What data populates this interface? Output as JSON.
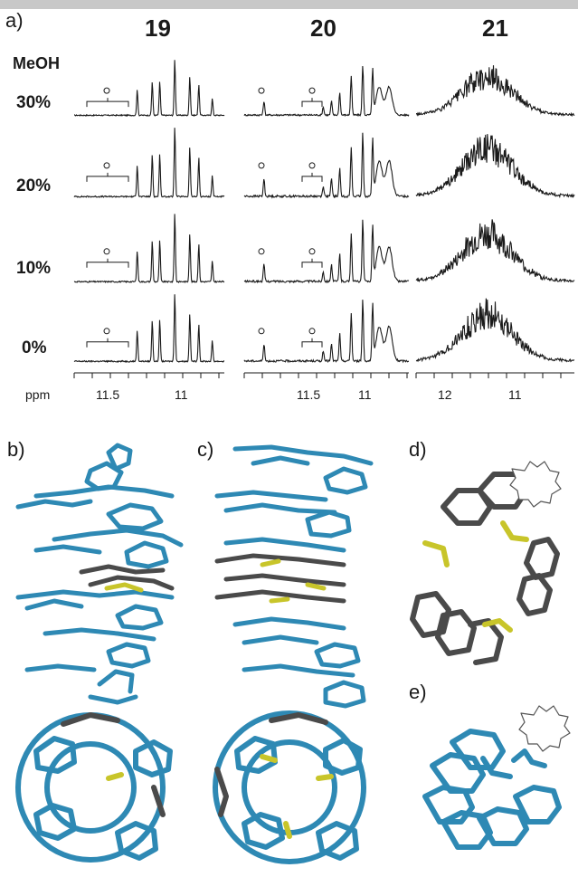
{
  "panels": {
    "a": "a)",
    "b": "b)",
    "c": "c)",
    "d": "d)",
    "e": "e)"
  },
  "compounds": [
    "19",
    "20",
    "21"
  ],
  "solvent_label": "MeOH",
  "concentrations": [
    "30%",
    "20%",
    "10%",
    "0%"
  ],
  "ppm_label": "ppm",
  "axis_ticks": {
    "c19": [
      "11.5",
      "11"
    ],
    "c20": [
      "11.5",
      "11"
    ],
    "c21": [
      "12",
      "11"
    ]
  },
  "colors": {
    "helix_blue": "#2e89b4",
    "core_gray": "#4a4a4a",
    "linker_yellow": "#c8c52a",
    "spectrum": "#1a1a1a"
  }
}
